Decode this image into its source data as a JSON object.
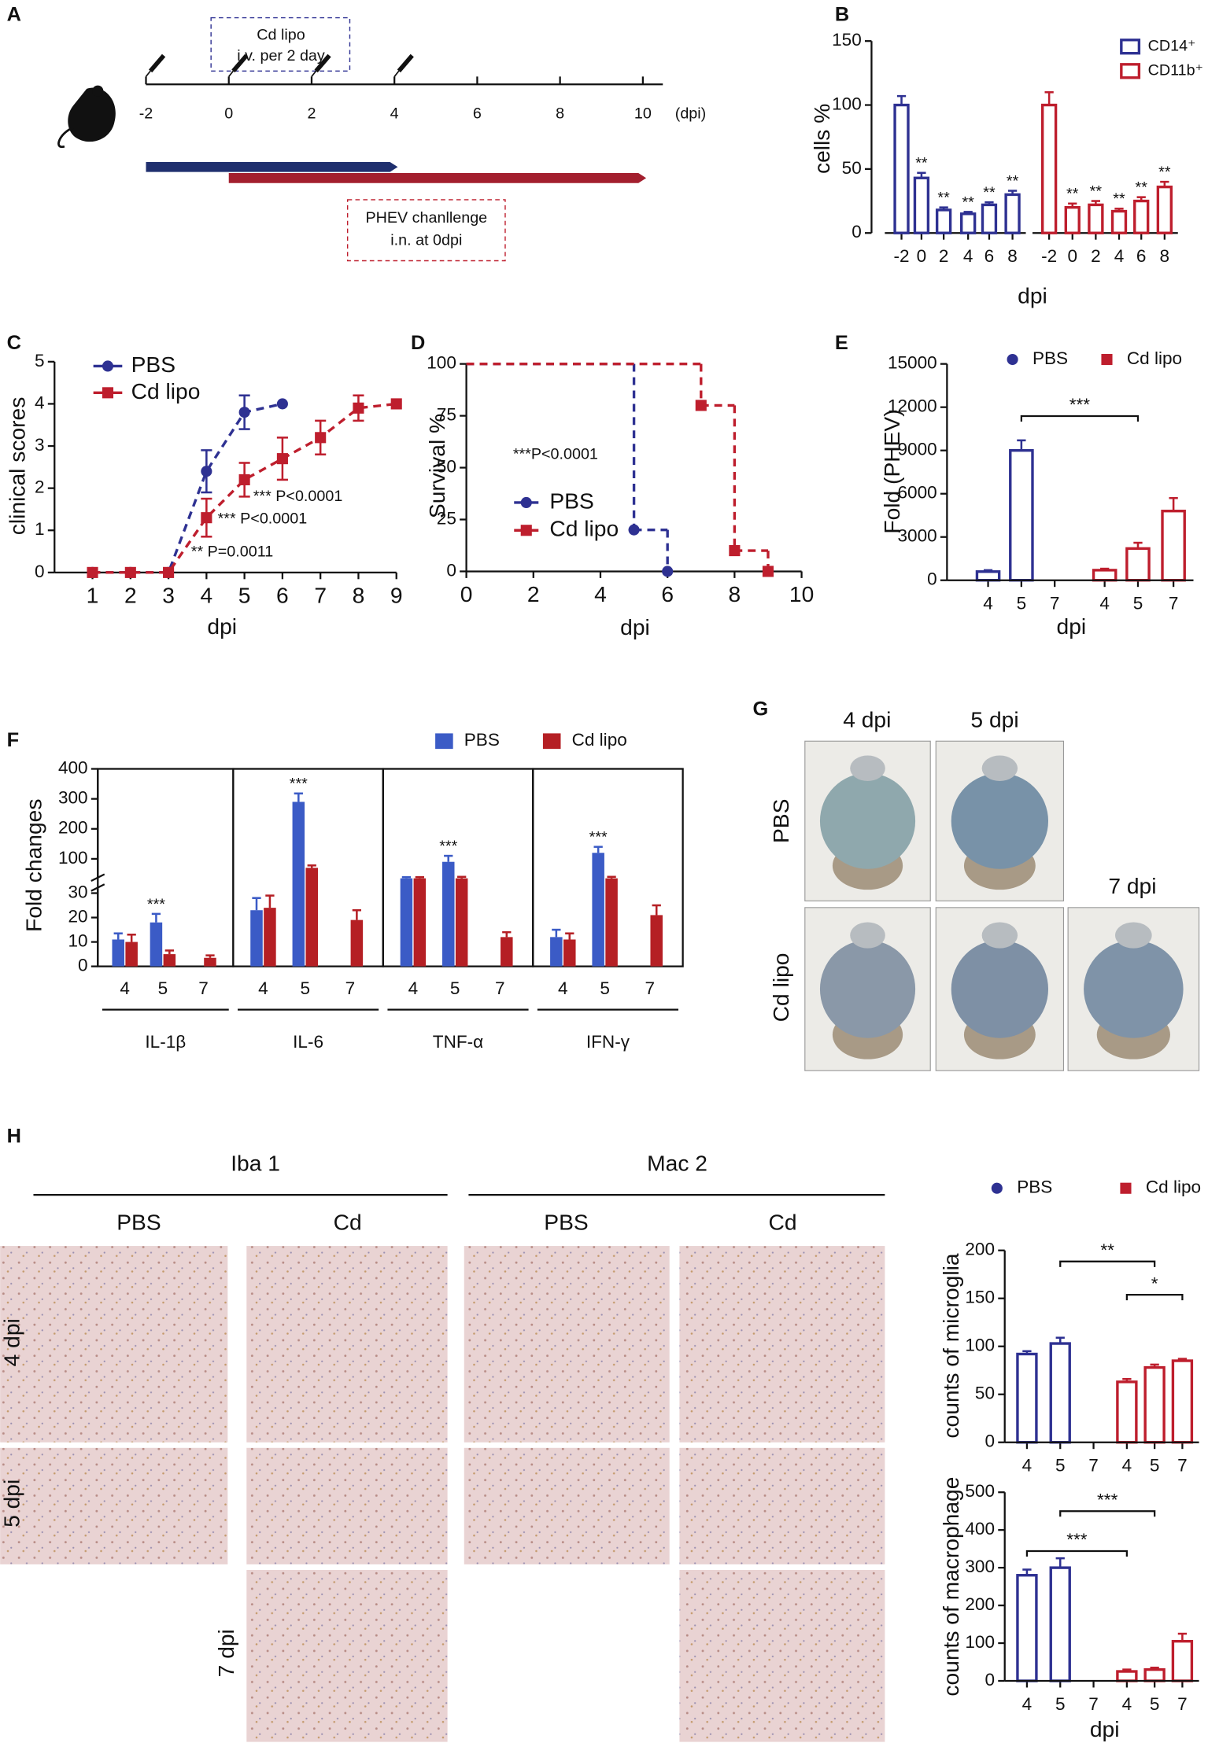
{
  "panel_labels": [
    "A",
    "B",
    "C",
    "D",
    "E",
    "F",
    "G",
    "H"
  ],
  "panel_a": {
    "box_top": [
      "Cd lipo",
      "i.v. per 2 day"
    ],
    "box_bottom": [
      "PHEV chanllenge",
      "i.n. at 0dpi"
    ],
    "ticks": [
      -2,
      0,
      2,
      4,
      6,
      8,
      10
    ],
    "unit": "(dpi)",
    "injections": [
      -2,
      0,
      2,
      4
    ],
    "bars": [
      {
        "from": -2,
        "to": 4,
        "color": "#1f2f6e"
      },
      {
        "from": 0,
        "to": 10,
        "color": "#a31f2e"
      }
    ]
  },
  "panel_g": {
    "columns": [
      "4 dpi",
      "5 dpi"
    ],
    "extra_column": "7 dpi",
    "rows": [
      "PBS",
      "Cd lipo"
    ]
  },
  "panel_h": {
    "stains": [
      "Iba 1",
      "Mac 2"
    ],
    "groups": [
      "PBS",
      "Cd",
      "PBS",
      "Cd"
    ],
    "rows": [
      "4 dpi",
      "5 dpi",
      "7 dpi"
    ]
  },
  "chart_data": [
    {
      "type": "block_bar",
      "ylabel": "cells %",
      "xlabel": "dpi",
      "categories": [
        "-2",
        "0",
        "2",
        "4",
        "6",
        "8"
      ],
      "ylim": [
        0,
        150
      ],
      "yticks": [
        0,
        50,
        100,
        150
      ],
      "series": [
        {
          "name": "CD14⁺",
          "color": "#2e3192",
          "values": [
            100,
            43,
            18,
            15,
            22,
            30
          ],
          "errors": [
            7,
            4,
            2,
            1.5,
            2,
            3
          ],
          "stars": [
            null,
            "**",
            "**",
            "**",
            "**",
            "**"
          ]
        },
        {
          "name": "CD11b⁺",
          "color": "#be1e2d",
          "values": [
            100,
            20,
            22,
            17,
            25,
            36
          ],
          "errors": [
            10,
            3,
            3,
            2,
            3,
            4
          ],
          "stars": [
            null,
            "**",
            "**",
            "**",
            "**",
            "**"
          ]
        }
      ]
    },
    {
      "type": "line",
      "ylabel": "clinical scores",
      "xlabel": "dpi",
      "x": [
        1,
        2,
        3,
        4,
        5,
        6,
        7,
        8,
        9
      ],
      "xlim": [
        0,
        9
      ],
      "xticks": [
        1,
        2,
        3,
        4,
        5,
        6,
        7,
        8,
        9
      ],
      "ylim": [
        0,
        5
      ],
      "yticks": [
        0,
        1,
        2,
        3,
        4,
        5
      ],
      "series": [
        {
          "name": "PBS",
          "color": "#2e3192",
          "marker": "circle",
          "values": [
            0,
            0,
            0,
            2.4,
            3.8,
            4,
            null,
            null,
            null
          ],
          "errors": [
            0,
            0,
            0,
            0.5,
            0.4,
            0,
            null,
            null,
            null
          ]
        },
        {
          "name": "Cd lipo",
          "color": "#be1e2d",
          "marker": "square",
          "values": [
            0,
            0,
            0,
            1.3,
            2.2,
            2.7,
            3.2,
            3.9,
            4
          ],
          "errors": [
            0,
            0,
            0,
            0.45,
            0.4,
            0.5,
            0.4,
            0.3,
            0
          ]
        }
      ],
      "annotations": [
        "*** P<0.0001",
        "*** P<0.0001",
        "** P=0.0011"
      ]
    },
    {
      "type": "step",
      "ylabel": "Survival %",
      "xlabel": "dpi",
      "xlim": [
        0,
        10
      ],
      "xticks": [
        0,
        2,
        4,
        6,
        8,
        10
      ],
      "ylim": [
        0,
        100
      ],
      "yticks": [
        0,
        25,
        50,
        75,
        100
      ],
      "series": [
        {
          "name": "PBS",
          "color": "#2e3192",
          "marker": "circle",
          "x": [
            0,
            5,
            6
          ],
          "values": [
            100,
            20,
            0
          ]
        },
        {
          "name": "Cd lipo",
          "color": "#be1e2d",
          "marker": "square",
          "x": [
            0,
            7,
            8,
            9
          ],
          "values": [
            100,
            80,
            10,
            0
          ]
        }
      ],
      "annotations": [
        "***P<0.0001"
      ]
    },
    {
      "type": "dot_bar",
      "ylabel": "Fold (PHEV)",
      "xlabel": "dpi",
      "categories": [
        "4",
        "5",
        "7"
      ],
      "ylim": [
        0,
        15000
      ],
      "yticks": [
        0,
        3000,
        6000,
        9000,
        12000,
        15000
      ],
      "series": [
        {
          "name": "PBS",
          "color": "#2e3192",
          "marker": "circle",
          "values": [
            600,
            9000,
            null
          ],
          "errors": [
            100,
            700,
            null
          ]
        },
        {
          "name": "Cd lipo",
          "color": "#be1e2d",
          "marker": "square",
          "values": [
            700,
            2200,
            4800
          ],
          "errors": [
            100,
            400,
            900
          ]
        }
      ],
      "brackets": [
        "***"
      ]
    },
    {
      "type": "broken_bar",
      "ylabel": "Fold changes",
      "categories": [
        "4",
        "5",
        "7"
      ],
      "ylim": [
        0,
        400
      ],
      "ybreak": 30,
      "yticks": [
        0,
        10,
        20,
        30,
        100,
        200,
        300,
        400
      ],
      "series": [
        {
          "name": "PBS",
          "color": "#3b5bc6"
        },
        {
          "name": "Cd lipo",
          "color": "#b51f24"
        }
      ],
      "panels": [
        {
          "label": "IL-1β",
          "values": [
            [
              11,
              18,
              null
            ],
            [
              10,
              5,
              3.5
            ]
          ],
          "errors": [
            [
              2.5,
              3.5,
              null
            ],
            [
              3,
              1.5,
              1
            ]
          ],
          "stars": "***"
        },
        {
          "label": "IL-6",
          "values": [
            [
              23,
              290,
              null
            ],
            [
              24,
              70,
              19
            ]
          ],
          "errors": [
            [
              5,
              28,
              null
            ],
            [
              5,
              8,
              4
            ]
          ],
          "stars": "***"
        },
        {
          "label": "TNF-α",
          "values": [
            [
              35,
              90,
              null
            ],
            [
              35,
              35,
              12
            ]
          ],
          "errors": [
            [
              4,
              20,
              null
            ],
            [
              4,
              5,
              2
            ]
          ],
          "stars": "***"
        },
        {
          "label": "IFN-γ",
          "values": [
            [
              12,
              120,
              null
            ],
            [
              11,
              35,
              21
            ]
          ],
          "errors": [
            [
              3,
              20,
              null
            ],
            [
              2.5,
              5,
              4
            ]
          ],
          "stars": "***"
        }
      ]
    },
    {
      "type": "dot_bar",
      "ylabel": "counts of microglia",
      "categories": [
        "4",
        "5",
        "7"
      ],
      "ylim": [
        0,
        200
      ],
      "yticks": [
        0,
        50,
        100,
        150,
        200
      ],
      "series": [
        {
          "name": "PBS",
          "color": "#2e3192",
          "marker": "circle",
          "values": [
            92,
            103,
            null
          ],
          "errors": [
            3,
            6,
            null
          ]
        },
        {
          "name": "Cd lipo",
          "color": "#be1e2d",
          "marker": "square",
          "values": [
            63,
            78,
            85
          ],
          "errors": [
            3,
            3,
            2
          ]
        }
      ],
      "brackets": [
        "**",
        "*"
      ]
    },
    {
      "type": "dot_bar",
      "ylabel": "counts of macrophage",
      "xlabel": "dpi",
      "categories": [
        "4",
        "5",
        "7"
      ],
      "ylim": [
        0,
        500
      ],
      "yticks": [
        0,
        100,
        200,
        300,
        400,
        500
      ],
      "series": [
        {
          "color": "#2e3192",
          "values": [
            280,
            300,
            null
          ],
          "errors": [
            15,
            25,
            null
          ]
        },
        {
          "color": "#be1e2d",
          "values": [
            25,
            30,
            105
          ],
          "errors": [
            5,
            5,
            20
          ]
        }
      ],
      "brackets": [
        "***",
        "***"
      ]
    }
  ]
}
